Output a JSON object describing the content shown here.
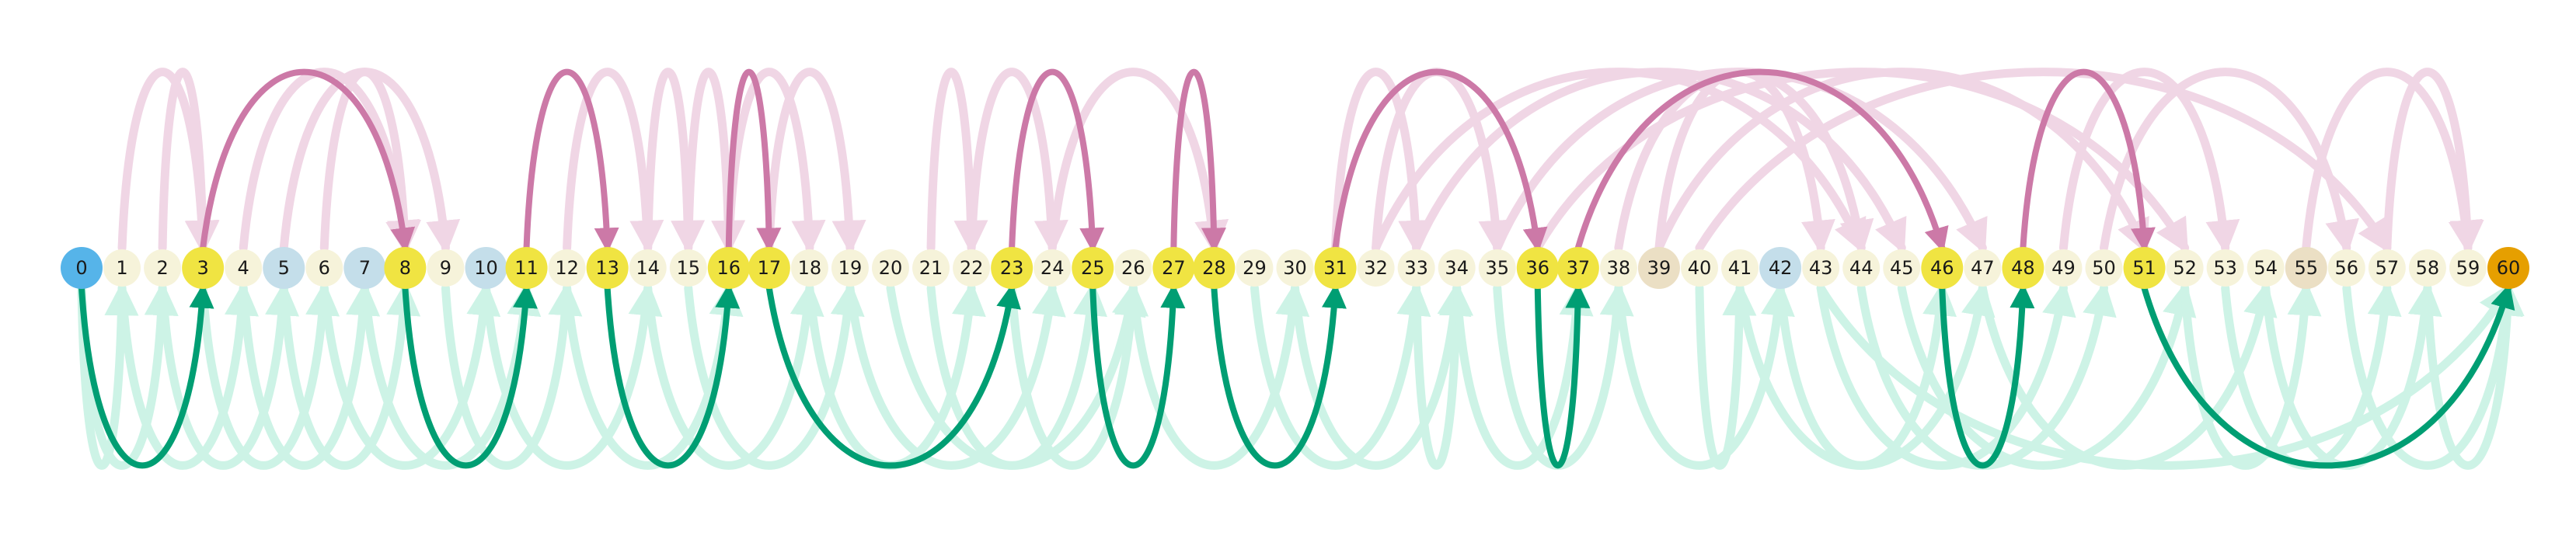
{
  "diagram": {
    "colors": {
      "forward": "#009e73",
      "backward": "#cc79a7",
      "forward_faint": "#cdf3e6",
      "backward_faint": "#f0d6e5",
      "node_plain": "#f6f3da",
      "node_yellow": "#f0e442",
      "node_blue": "#56b4e9",
      "node_lightblue": "#c4deea",
      "node_tan": "#ebdfc4",
      "node_orange": "#e69f00"
    },
    "nodes": [
      {
        "label": "0",
        "kind": "blue"
      },
      {
        "label": "1",
        "kind": "plain"
      },
      {
        "label": "2",
        "kind": "plain"
      },
      {
        "label": "3",
        "kind": "yellow"
      },
      {
        "label": "4",
        "kind": "plain"
      },
      {
        "label": "5",
        "kind": "lightblue"
      },
      {
        "label": "6",
        "kind": "plain"
      },
      {
        "label": "7",
        "kind": "lightblue"
      },
      {
        "label": "8",
        "kind": "yellow"
      },
      {
        "label": "9",
        "kind": "plain"
      },
      {
        "label": "10",
        "kind": "lightblue"
      },
      {
        "label": "11",
        "kind": "yellow"
      },
      {
        "label": "12",
        "kind": "plain"
      },
      {
        "label": "13",
        "kind": "yellow"
      },
      {
        "label": "14",
        "kind": "plain"
      },
      {
        "label": "15",
        "kind": "plain"
      },
      {
        "label": "16",
        "kind": "yellow"
      },
      {
        "label": "17",
        "kind": "yellow"
      },
      {
        "label": "18",
        "kind": "plain"
      },
      {
        "label": "19",
        "kind": "plain"
      },
      {
        "label": "20",
        "kind": "plain"
      },
      {
        "label": "21",
        "kind": "plain"
      },
      {
        "label": "22",
        "kind": "plain"
      },
      {
        "label": "23",
        "kind": "yellow"
      },
      {
        "label": "24",
        "kind": "plain"
      },
      {
        "label": "25",
        "kind": "yellow"
      },
      {
        "label": "26",
        "kind": "plain"
      },
      {
        "label": "27",
        "kind": "yellow"
      },
      {
        "label": "28",
        "kind": "yellow"
      },
      {
        "label": "29",
        "kind": "plain"
      },
      {
        "label": "30",
        "kind": "plain"
      },
      {
        "label": "31",
        "kind": "yellow"
      },
      {
        "label": "32",
        "kind": "plain"
      },
      {
        "label": "33",
        "kind": "plain"
      },
      {
        "label": "34",
        "kind": "plain"
      },
      {
        "label": "35",
        "kind": "plain"
      },
      {
        "label": "36",
        "kind": "yellow"
      },
      {
        "label": "37",
        "kind": "yellow"
      },
      {
        "label": "38",
        "kind": "plain"
      },
      {
        "label": "39",
        "kind": "tan"
      },
      {
        "label": "40",
        "kind": "plain"
      },
      {
        "label": "41",
        "kind": "plain"
      },
      {
        "label": "42",
        "kind": "lightblue"
      },
      {
        "label": "43",
        "kind": "plain"
      },
      {
        "label": "44",
        "kind": "plain"
      },
      {
        "label": "45",
        "kind": "plain"
      },
      {
        "label": "46",
        "kind": "yellow"
      },
      {
        "label": "47",
        "kind": "plain"
      },
      {
        "label": "48",
        "kind": "yellow"
      },
      {
        "label": "49",
        "kind": "plain"
      },
      {
        "label": "50",
        "kind": "plain"
      },
      {
        "label": "51",
        "kind": "yellow"
      },
      {
        "label": "52",
        "kind": "plain"
      },
      {
        "label": "53",
        "kind": "plain"
      },
      {
        "label": "54",
        "kind": "plain"
      },
      {
        "label": "55",
        "kind": "tan"
      },
      {
        "label": "56",
        "kind": "plain"
      },
      {
        "label": "57",
        "kind": "plain"
      },
      {
        "label": "58",
        "kind": "plain"
      },
      {
        "label": "59",
        "kind": "plain"
      },
      {
        "label": "60",
        "kind": "orange"
      }
    ],
    "path_arcs": [
      {
        "from": 0,
        "to": 3,
        "kind": "forward"
      },
      {
        "from": 3,
        "to": 8,
        "kind": "backward"
      },
      {
        "from": 8,
        "to": 11,
        "kind": "forward"
      },
      {
        "from": 11,
        "to": 13,
        "kind": "backward"
      },
      {
        "from": 13,
        "to": 16,
        "kind": "forward"
      },
      {
        "from": 16,
        "to": 17,
        "kind": "backward"
      },
      {
        "from": 17,
        "to": 23,
        "kind": "forward"
      },
      {
        "from": 23,
        "to": 25,
        "kind": "backward"
      },
      {
        "from": 25,
        "to": 27,
        "kind": "forward"
      },
      {
        "from": 27,
        "to": 28,
        "kind": "backward"
      },
      {
        "from": 28,
        "to": 31,
        "kind": "forward"
      },
      {
        "from": 31,
        "to": 36,
        "kind": "backward"
      },
      {
        "from": 36,
        "to": 37,
        "kind": "forward"
      },
      {
        "from": 37,
        "to": 46,
        "kind": "backward"
      },
      {
        "from": 46,
        "to": 48,
        "kind": "forward"
      },
      {
        "from": 48,
        "to": 51,
        "kind": "backward"
      },
      {
        "from": 51,
        "to": 60,
        "kind": "forward"
      }
    ],
    "faint_arcs": [
      {
        "from": 1,
        "to": 3,
        "kind": "backward"
      },
      {
        "from": 2,
        "to": 3,
        "kind": "backward"
      },
      {
        "from": 0,
        "to": 1,
        "kind": "forward"
      },
      {
        "from": 0,
        "to": 2,
        "kind": "forward"
      },
      {
        "from": 1,
        "to": 4,
        "kind": "forward"
      },
      {
        "from": 2,
        "to": 5,
        "kind": "forward"
      },
      {
        "from": 4,
        "to": 8,
        "kind": "backward"
      },
      {
        "from": 5,
        "to": 9,
        "kind": "backward"
      },
      {
        "from": 6,
        "to": 8,
        "kind": "backward"
      },
      {
        "from": 3,
        "to": 6,
        "kind": "forward"
      },
      {
        "from": 4,
        "to": 7,
        "kind": "forward"
      },
      {
        "from": 5,
        "to": 8,
        "kind": "forward"
      },
      {
        "from": 6,
        "to": 10,
        "kind": "forward"
      },
      {
        "from": 7,
        "to": 11,
        "kind": "forward"
      },
      {
        "from": 9,
        "to": 12,
        "kind": "forward"
      },
      {
        "from": 10,
        "to": 14,
        "kind": "forward"
      },
      {
        "from": 12,
        "to": 14,
        "kind": "backward"
      },
      {
        "from": 14,
        "to": 15,
        "kind": "backward"
      },
      {
        "from": 15,
        "to": 16,
        "kind": "backward"
      },
      {
        "from": 12,
        "to": 16,
        "kind": "forward"
      },
      {
        "from": 14,
        "to": 18,
        "kind": "forward"
      },
      {
        "from": 15,
        "to": 19,
        "kind": "forward"
      },
      {
        "from": 16,
        "to": 18,
        "kind": "backward"
      },
      {
        "from": 17,
        "to": 19,
        "kind": "backward"
      },
      {
        "from": 18,
        "to": 22,
        "kind": "forward"
      },
      {
        "from": 19,
        "to": 24,
        "kind": "forward"
      },
      {
        "from": 20,
        "to": 26,
        "kind": "forward"
      },
      {
        "from": 21,
        "to": 22,
        "kind": "backward"
      },
      {
        "from": 22,
        "to": 24,
        "kind": "backward"
      },
      {
        "from": 21,
        "to": 25,
        "kind": "forward"
      },
      {
        "from": 23,
        "to": 26,
        "kind": "forward"
      },
      {
        "from": 24,
        "to": 28,
        "kind": "backward"
      },
      {
        "from": 26,
        "to": 30,
        "kind": "forward"
      },
      {
        "from": 29,
        "to": 33,
        "kind": "forward"
      },
      {
        "from": 30,
        "to": 34,
        "kind": "forward"
      },
      {
        "from": 31,
        "to": 33,
        "kind": "backward"
      },
      {
        "from": 32,
        "to": 35,
        "kind": "backward"
      },
      {
        "from": 33,
        "to": 34,
        "kind": "forward"
      },
      {
        "from": 34,
        "to": 37,
        "kind": "forward"
      },
      {
        "from": 35,
        "to": 38,
        "kind": "forward"
      },
      {
        "from": 32,
        "to": 44,
        "kind": "backward"
      },
      {
        "from": 33,
        "to": 45,
        "kind": "backward"
      },
      {
        "from": 35,
        "to": 47,
        "kind": "backward"
      },
      {
        "from": 38,
        "to": 44,
        "kind": "backward"
      },
      {
        "from": 39,
        "to": 43,
        "kind": "backward"
      },
      {
        "from": 40,
        "to": 41,
        "kind": "forward"
      },
      {
        "from": 38,
        "to": 42,
        "kind": "forward"
      },
      {
        "from": 41,
        "to": 47,
        "kind": "forward"
      },
      {
        "from": 42,
        "to": 46,
        "kind": "forward"
      },
      {
        "from": 43,
        "to": 49,
        "kind": "forward"
      },
      {
        "from": 44,
        "to": 50,
        "kind": "forward"
      },
      {
        "from": 45,
        "to": 52,
        "kind": "forward"
      },
      {
        "from": 47,
        "to": 54,
        "kind": "forward"
      },
      {
        "from": 49,
        "to": 53,
        "kind": "backward"
      },
      {
        "from": 50,
        "to": 56,
        "kind": "backward"
      },
      {
        "from": 52,
        "to": 55,
        "kind": "forward"
      },
      {
        "from": 53,
        "to": 57,
        "kind": "forward"
      },
      {
        "from": 54,
        "to": 58,
        "kind": "forward"
      },
      {
        "from": 55,
        "to": 59,
        "kind": "backward"
      },
      {
        "from": 56,
        "to": 60,
        "kind": "forward"
      },
      {
        "from": 57,
        "to": 59,
        "kind": "backward"
      },
      {
        "from": 58,
        "to": 60,
        "kind": "forward"
      },
      {
        "from": 40,
        "to": 57,
        "kind": "backward"
      },
      {
        "from": 36,
        "to": 52,
        "kind": "backward"
      },
      {
        "from": 39,
        "to": 51,
        "kind": "backward"
      },
      {
        "from": 43,
        "to": 60,
        "kind": "forward"
      }
    ]
  }
}
